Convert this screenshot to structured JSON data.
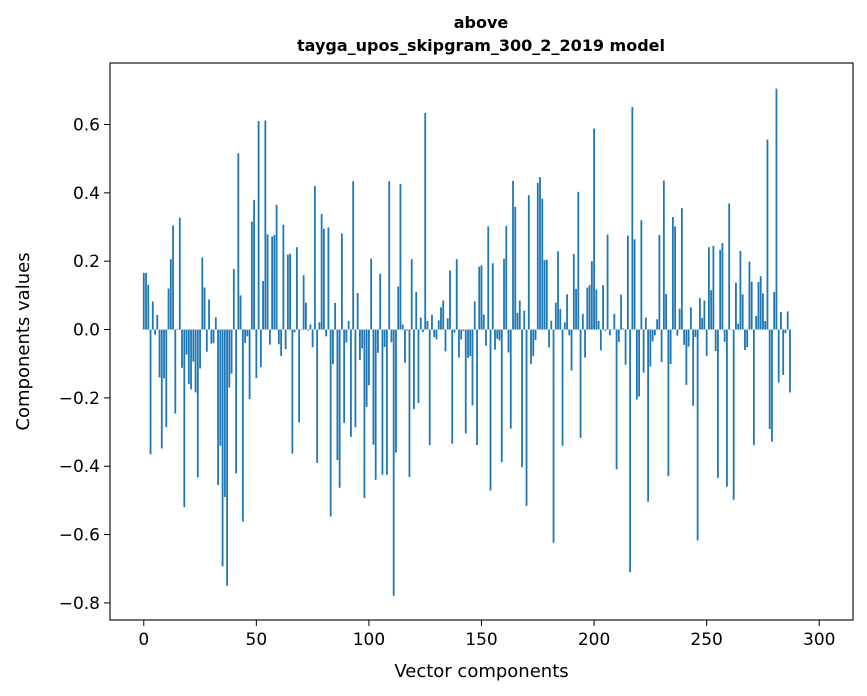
{
  "chart_data": {
    "type": "bar",
    "title_line1": "above",
    "title_line2": "tayga_upos_skipgram_300_2_2019 model",
    "xlabel": "Vector components",
    "ylabel": "Components values",
    "xlim": [
      -15,
      315
    ],
    "ylim": [
      -0.85,
      0.78
    ],
    "xticks": [
      0,
      50,
      100,
      150,
      200,
      250,
      300
    ],
    "xtick_labels": [
      "0",
      "50",
      "100",
      "150",
      "200",
      "250",
      "300"
    ],
    "yticks": [
      -0.8,
      -0.6,
      -0.4,
      -0.2,
      0.0,
      0.2,
      0.4,
      0.6
    ],
    "ytick_labels": [
      "−0.8",
      "−0.6",
      "−0.4",
      "−0.2",
      "0.0",
      "0.2",
      "0.4",
      "0.6"
    ],
    "bar_color": "#1f77b4",
    "values": [
      0.166,
      0.166,
      0.131,
      -0.365,
      0.082,
      -0.015,
      0.043,
      -0.14,
      -0.348,
      -0.143,
      -0.286,
      0.12,
      0.206,
      0.305,
      -0.246,
      0.002,
      0.327,
      -0.112,
      -0.52,
      -0.073,
      -0.16,
      -0.175,
      -0.094,
      -0.184,
      -0.433,
      -0.114,
      0.211,
      0.123,
      -0.065,
      0.088,
      -0.041,
      -0.04,
      0.036,
      -0.455,
      -0.34,
      -0.693,
      -0.49,
      -0.75,
      -0.17,
      -0.129,
      0.177,
      -0.421,
      0.516,
      0.1,
      -0.562,
      -0.039,
      -0.02,
      -0.204,
      0.316,
      0.379,
      -0.142,
      0.61,
      -0.11,
      0.142,
      0.612,
      0.278,
      -0.044,
      0.272,
      0.277,
      0.365,
      -0.043,
      -0.077,
      0.307,
      -0.057,
      0.219,
      0.222,
      -0.363,
      -0.008,
      0.241,
      -0.272,
      -0.002,
      0.159,
      0.079,
      -0.003,
      0.015,
      -0.052,
      0.42,
      -0.39,
      0.021,
      0.338,
      0.295,
      -0.02,
      0.299,
      -0.547,
      -0.101,
      0.078,
      -0.382,
      -0.463,
      0.281,
      -0.273,
      -0.038,
      0.025,
      -0.314,
      0.434,
      -0.286,
      0.107,
      -0.089,
      -0.055,
      -0.493,
      -0.226,
      -0.163,
      0.207,
      -0.337,
      -0.44,
      -0.068,
      0.163,
      -0.425,
      -0.051,
      -0.425,
      0.434,
      -0.037,
      -0.779,
      -0.36,
      0.126,
      0.426,
      0.015,
      -0.097,
      -0.003,
      -0.432,
      0.206,
      -0.233,
      0.11,
      -0.215,
      0.035,
      -0.007,
      0.634,
      0.025,
      -0.338,
      0.043,
      -0.022,
      -0.029,
      0.027,
      0.065,
      0.085,
      -0.064,
      0.033,
      0.173,
      -0.334,
      -0.009,
      0.206,
      -0.082,
      -0.029,
      -0.004,
      -0.304,
      -0.083,
      -0.078,
      -0.222,
      0.082,
      -0.338,
      0.184,
      0.188,
      0.044,
      -0.047,
      0.302,
      -0.471,
      0.194,
      -0.059,
      -0.027,
      -0.032,
      -0.388,
      0.207,
      0.303,
      -0.067,
      -0.29,
      0.435,
      0.359,
      0.049,
      0.085,
      -0.403,
      0.055,
      -0.516,
      0.393,
      -0.101,
      -0.078,
      -0.031,
      0.429,
      0.446,
      0.383,
      0.203,
      0.205,
      -0.052,
      0.026,
      -0.624,
      0.079,
      0.229,
      0.06,
      -0.34,
      0.021,
      0.103,
      -0.017,
      -0.12,
      0.221,
      0.119,
      0.403,
      -0.317,
      0.046,
      -0.082,
      0.123,
      0.13,
      0.2,
      0.588,
      0.117,
      0.025,
      -0.061,
      0.13,
      -0.004,
      0.278,
      -0.017,
      0.001,
      0.046,
      -0.409,
      -0.036,
      0.102,
      0.003,
      -0.103,
      0.275,
      -0.71,
      0.651,
      0.264,
      -0.205,
      -0.196,
      0.32,
      -0.126,
      0.035,
      -0.504,
      -0.108,
      -0.035,
      -0.017,
      0.03,
      0.277,
      -0.095,
      0.436,
      0.104,
      -0.429,
      -0.101,
      0.329,
      0.302,
      -0.018,
      0.061,
      0.355,
      -0.045,
      -0.162,
      -0.05,
      0.065,
      -0.223,
      -0.022,
      -0.617,
      0.092,
      0.034,
      0.085,
      -0.077,
      0.241,
      0.115,
      0.245,
      -0.063,
      -0.434,
      0.233,
      0.253,
      -0.036,
      -0.46,
      0.369,
      0.001,
      -0.498,
      0.137,
      0.017,
      0.23,
      0.103,
      -0.06,
      -0.052,
      0.199,
      0.14,
      -0.338,
      0.04,
      0.139,
      0.156,
      0.106,
      0.025,
      0.556,
      -0.291,
      -0.328,
      0.11,
      0.705,
      -0.155,
      0.051,
      -0.133,
      -0.011,
      0.053,
      -0.184
    ]
  }
}
